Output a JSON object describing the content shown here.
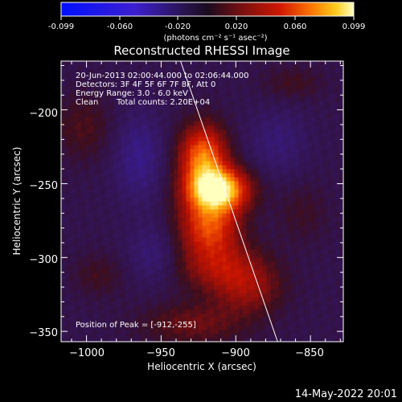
{
  "colorbar": {
    "ticks": [
      "-0.099",
      "-0.060",
      "-0.020",
      "0.020",
      "0.060",
      "0.099"
    ],
    "units_label": "(photons cm⁻² s⁻¹ asec⁻²)"
  },
  "chart_data": {
    "type": "heatmap",
    "title": "Reconstructed RHESSI Image",
    "xlabel": "Heliocentric X (arcsec)",
    "ylabel": "Heliocentric Y (arcsec)",
    "xlim": [
      -1017,
      -828
    ],
    "ylim": [
      -357,
      -167
    ],
    "xticks": [
      -1000,
      -950,
      -900,
      -850
    ],
    "yticks": [
      -350,
      -300,
      -250,
      -200
    ],
    "xtick_labels": [
      "−1000",
      "−950",
      "−900",
      "−850"
    ],
    "ytick_labels": [
      "−350",
      "−300",
      "−250",
      "−200"
    ],
    "color_range": [
      -0.099,
      0.099
    ],
    "peak": [
      -912,
      -255
    ],
    "limb_line": [
      [
        -937,
        -167
      ],
      [
        -872,
        -357
      ]
    ],
    "sources": [
      {
        "x": -912,
        "y": -254,
        "sx": 14,
        "sy": 10,
        "amp": 0.099
      },
      {
        "x": -922,
        "y": -232,
        "sx": 11,
        "sy": 15,
        "amp": 0.072
      },
      {
        "x": -918,
        "y": -278,
        "sx": 14,
        "sy": 14,
        "amp": 0.06
      },
      {
        "x": -910,
        "y": -306,
        "sx": 20,
        "sy": 12,
        "amp": 0.034
      },
      {
        "x": -892,
        "y": -322,
        "sx": 16,
        "sy": 12,
        "amp": 0.028
      },
      {
        "x": -928,
        "y": -345,
        "sx": 24,
        "sy": 10,
        "amp": 0.022
      },
      {
        "x": -1002,
        "y": -212,
        "sx": 14,
        "sy": 16,
        "amp": 0.015
      },
      {
        "x": -992,
        "y": -312,
        "sx": 12,
        "sy": 10,
        "amp": 0.012
      },
      {
        "x": -862,
        "y": -182,
        "sx": 14,
        "sy": 8,
        "amp": 0.012
      },
      {
        "x": -855,
        "y": -270,
        "sx": 12,
        "sy": 14,
        "amp": 0.01
      },
      {
        "x": -965,
        "y": -232,
        "sx": 12,
        "sy": 22,
        "amp": -0.02
      },
      {
        "x": -955,
        "y": -298,
        "sx": 12,
        "sy": 14,
        "amp": -0.015
      },
      {
        "x": -872,
        "y": -222,
        "sx": 14,
        "sy": 16,
        "amp": -0.014
      }
    ],
    "background": -0.007,
    "annotations": {
      "time_range": "20-Jun-2013 02:00:44.000 to 02:06:44.000",
      "detectors": "Detectors: 3F 4F 5F 6F 7F 8F, Att 0",
      "energy": "Energy Range: 3.0 - 6.0 keV",
      "method": "Clean",
      "counts": "Total counts: 2.20E+04",
      "peak_label": "Position of Peak = [-912,-255]"
    }
  },
  "footer": {
    "timestamp": "14-May-2022 20:01"
  }
}
